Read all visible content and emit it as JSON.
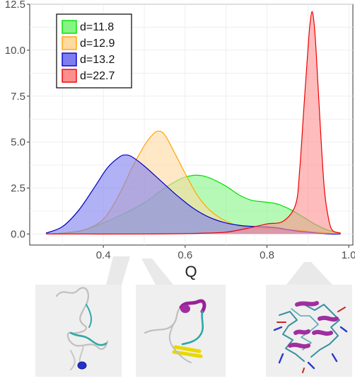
{
  "chart_data": {
    "type": "area",
    "title": "",
    "xlabel": "Q",
    "ylabel": "",
    "xlim": [
      0.22,
      1.01
    ],
    "ylim": [
      -0.6,
      12.5
    ],
    "x_ticks": [
      0.4,
      0.6,
      0.8,
      1.0
    ],
    "x_tick_labels": [
      "0.4",
      "0.6",
      "0.8",
      "1.0"
    ],
    "y_ticks": [
      0.0,
      2.5,
      5.0,
      7.5,
      10.0,
      12.5
    ],
    "y_tick_labels": [
      "0.0",
      "2.5",
      "5.0",
      "7.5",
      "10.0",
      "12.5"
    ],
    "grid": true,
    "legend_position": "top-left",
    "series": [
      {
        "name": "d=11.8",
        "color": "#00e000",
        "fill": "#85f585",
        "x": [
          0.26,
          0.3,
          0.35,
          0.4,
          0.45,
          0.5,
          0.55,
          0.58,
          0.6,
          0.63,
          0.66,
          0.7,
          0.73,
          0.76,
          0.79,
          0.81,
          0.83,
          0.86,
          0.89,
          0.92,
          0.95,
          0.98
        ],
        "y": [
          0.0,
          0.05,
          0.2,
          0.6,
          1.1,
          1.7,
          2.5,
          2.9,
          3.1,
          3.2,
          3.05,
          2.6,
          2.15,
          1.85,
          1.75,
          1.7,
          1.6,
          1.3,
          0.9,
          0.5,
          0.2,
          0.05
        ]
      },
      {
        "name": "d=12.9",
        "color": "#ffa500",
        "fill": "#ffd9a0",
        "x": [
          0.26,
          0.3,
          0.35,
          0.4,
          0.44,
          0.47,
          0.5,
          0.52,
          0.535,
          0.55,
          0.57,
          0.6,
          0.63,
          0.66,
          0.7,
          0.75,
          0.8,
          0.85,
          0.9,
          0.95,
          0.98
        ],
        "y": [
          0.0,
          0.05,
          0.2,
          0.8,
          2.2,
          3.6,
          4.8,
          5.4,
          5.6,
          5.4,
          4.6,
          3.3,
          2.1,
          1.3,
          0.7,
          0.35,
          0.3,
          0.25,
          0.15,
          0.05,
          0.0
        ]
      },
      {
        "name": "d=13.2",
        "color": "#0000cc",
        "fill": "#7d7df0",
        "x": [
          0.26,
          0.3,
          0.34,
          0.38,
          0.41,
          0.44,
          0.455,
          0.47,
          0.5,
          0.54,
          0.58,
          0.62,
          0.66,
          0.7,
          0.74,
          0.78,
          0.82,
          0.86,
          0.9,
          0.95,
          0.98
        ],
        "y": [
          0.05,
          0.4,
          1.3,
          2.6,
          3.6,
          4.2,
          4.3,
          4.2,
          3.7,
          2.9,
          2.1,
          1.4,
          0.9,
          0.6,
          0.45,
          0.4,
          0.35,
          0.2,
          0.1,
          0.0,
          0.0
        ]
      },
      {
        "name": "d=22.7",
        "color": "#ee0000",
        "fill": "#ff8f8f",
        "x": [
          0.26,
          0.5,
          0.6,
          0.65,
          0.7,
          0.75,
          0.8,
          0.84,
          0.87,
          0.88,
          0.89,
          0.9,
          0.905,
          0.91,
          0.915,
          0.92,
          0.93,
          0.94,
          0.95,
          0.96,
          0.98
        ],
        "y": [
          0.0,
          0.0,
          0.02,
          0.05,
          0.1,
          0.3,
          0.55,
          0.7,
          1.6,
          3.5,
          6.8,
          10.0,
          11.4,
          12.1,
          11.5,
          10.0,
          6.0,
          2.5,
          0.9,
          0.2,
          0.05
        ]
      }
    ]
  },
  "panels": [
    {
      "icon": "protein-structure-unfolded-icon"
    },
    {
      "icon": "protein-structure-partial-icon"
    },
    {
      "icon": "protein-structure-folded-icon"
    }
  ]
}
